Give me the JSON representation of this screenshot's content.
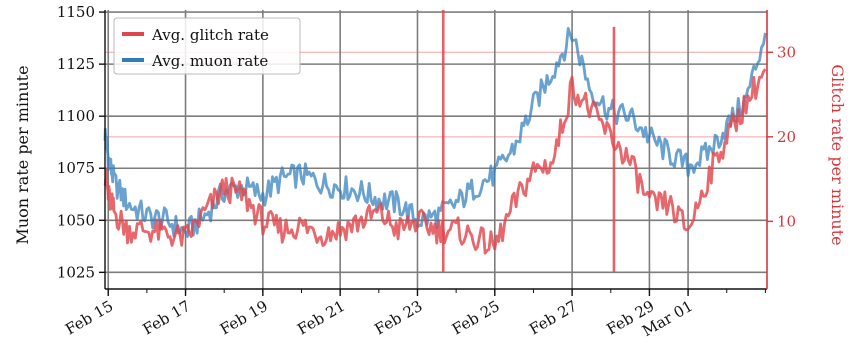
{
  "chart_data": {
    "type": "line",
    "legend": {
      "placement": "top-left",
      "entries": [
        {
          "key": "glitch",
          "label": "Avg. glitch rate",
          "color": "#e0474c"
        },
        {
          "key": "muon",
          "label": "Avg. muon rate",
          "color": "#2f7ebc"
        }
      ]
    },
    "ylabel_left": "Muon rate per minute",
    "ylabel_right": "Glitch rate per minute",
    "ylim_left": [
      1017,
      1151
    ],
    "ylim_right": [
      2,
      35
    ],
    "yticks_left": [
      1025,
      1050,
      1075,
      1100,
      1125,
      1150
    ],
    "yticks_right": [
      10,
      20,
      30
    ],
    "x_range_days": [
      "2024-02-14T22:00",
      "2024-03-03T01:00"
    ],
    "xtick_labels": [
      {
        "date": "2024-02-15",
        "label": "Feb 15"
      },
      {
        "date": "2024-02-17",
        "label": "Feb 17"
      },
      {
        "date": "2024-02-19",
        "label": "Feb 19"
      },
      {
        "date": "2024-02-21",
        "label": "Feb 21"
      },
      {
        "date": "2024-02-23",
        "label": "Feb 23"
      },
      {
        "date": "2024-02-25",
        "label": "Feb 25"
      },
      {
        "date": "2024-02-27",
        "label": "Feb 27"
      },
      {
        "date": "2024-02-29",
        "label": "Feb 29"
      },
      {
        "date": "2024-03-01",
        "label": "Mar 01"
      }
    ],
    "minor_ticks_daily": true,
    "grid": true,
    "series": [
      {
        "name": "Avg. muon rate",
        "axis": "left",
        "color": "#2f7ebc",
        "x": [
          "2024-02-14T22:00",
          "2024-02-15T00:00",
          "2024-02-15T04:00",
          "2024-02-15T12:00",
          "2024-02-16T00:00",
          "2024-02-16T12:00",
          "2024-02-17T00:00",
          "2024-02-17T12:00",
          "2024-02-18T00:00",
          "2024-02-18T12:00",
          "2024-02-19T00:00",
          "2024-02-19T12:00",
          "2024-02-20T00:00",
          "2024-02-20T12:00",
          "2024-02-21T00:00",
          "2024-02-21T12:00",
          "2024-02-22T00:00",
          "2024-02-22T12:00",
          "2024-02-23T00:00",
          "2024-02-23T12:00",
          "2024-02-24T00:00",
          "2024-02-24T12:00",
          "2024-02-25T00:00",
          "2024-02-25T12:00",
          "2024-02-26T00:00",
          "2024-02-26T12:00",
          "2024-02-27T00:00",
          "2024-02-27T12:00",
          "2024-02-28T00:00",
          "2024-02-28T12:00",
          "2024-02-29T00:00",
          "2024-02-29T12:00",
          "2024-03-01T00:00",
          "2024-03-01T12:00",
          "2024-03-02T00:00",
          "2024-03-02T12:00",
          "2024-03-03T00:00"
        ],
        "values": [
          1092,
          1080,
          1068,
          1058,
          1052,
          1050,
          1044,
          1052,
          1064,
          1066,
          1062,
          1070,
          1072,
          1068,
          1066,
          1064,
          1060,
          1058,
          1050,
          1052,
          1058,
          1066,
          1072,
          1085,
          1105,
          1122,
          1140,
          1112,
          1102,
          1100,
          1090,
          1082,
          1076,
          1082,
          1095,
          1108,
          1140
        ]
      },
      {
        "name": "Avg. glitch rate",
        "axis": "right",
        "color": "#e0474c",
        "x": [
          "2024-02-14T22:00",
          "2024-02-15T00:00",
          "2024-02-15T04:00",
          "2024-02-15T12:00",
          "2024-02-16T00:00",
          "2024-02-16T12:00",
          "2024-02-17T00:00",
          "2024-02-17T12:00",
          "2024-02-18T00:00",
          "2024-02-18T12:00",
          "2024-02-19T00:00",
          "2024-02-19T12:00",
          "2024-02-20T00:00",
          "2024-02-20T12:00",
          "2024-02-21T00:00",
          "2024-02-21T12:00",
          "2024-02-22T00:00",
          "2024-02-22T12:00",
          "2024-02-23T00:00",
          "2024-02-23T12:00",
          "2024-02-24T00:00",
          "2024-02-24T12:00",
          "2024-02-25T00:00",
          "2024-02-25T12:00",
          "2024-02-26T00:00",
          "2024-02-26T12:00",
          "2024-02-27T00:00",
          "2024-02-27T12:00",
          "2024-02-28T00:00",
          "2024-02-28T12:00",
          "2024-02-29T00:00",
          "2024-02-29T12:00",
          "2024-03-01T00:00",
          "2024-03-01T12:00",
          "2024-03-02T00:00",
          "2024-03-02T12:00",
          "2024-03-03T00:00"
        ],
        "values": [
          16,
          13,
          11,
          9,
          9,
          8.5,
          8,
          11,
          14,
          13,
          10,
          9,
          9.5,
          8.5,
          9,
          10,
          11,
          9,
          10,
          9,
          9,
          8,
          7,
          12,
          16,
          17,
          26,
          23,
          20,
          17,
          12,
          12,
          9,
          15,
          20,
          24,
          28
        ]
      }
    ],
    "spikes": [
      {
        "series": "Avg. glitch rate",
        "x": "2024-02-23T16:00",
        "value": 35
      },
      {
        "series": "Avg. glitch rate",
        "x": "2024-02-28T02:00",
        "value": 33
      }
    ]
  }
}
